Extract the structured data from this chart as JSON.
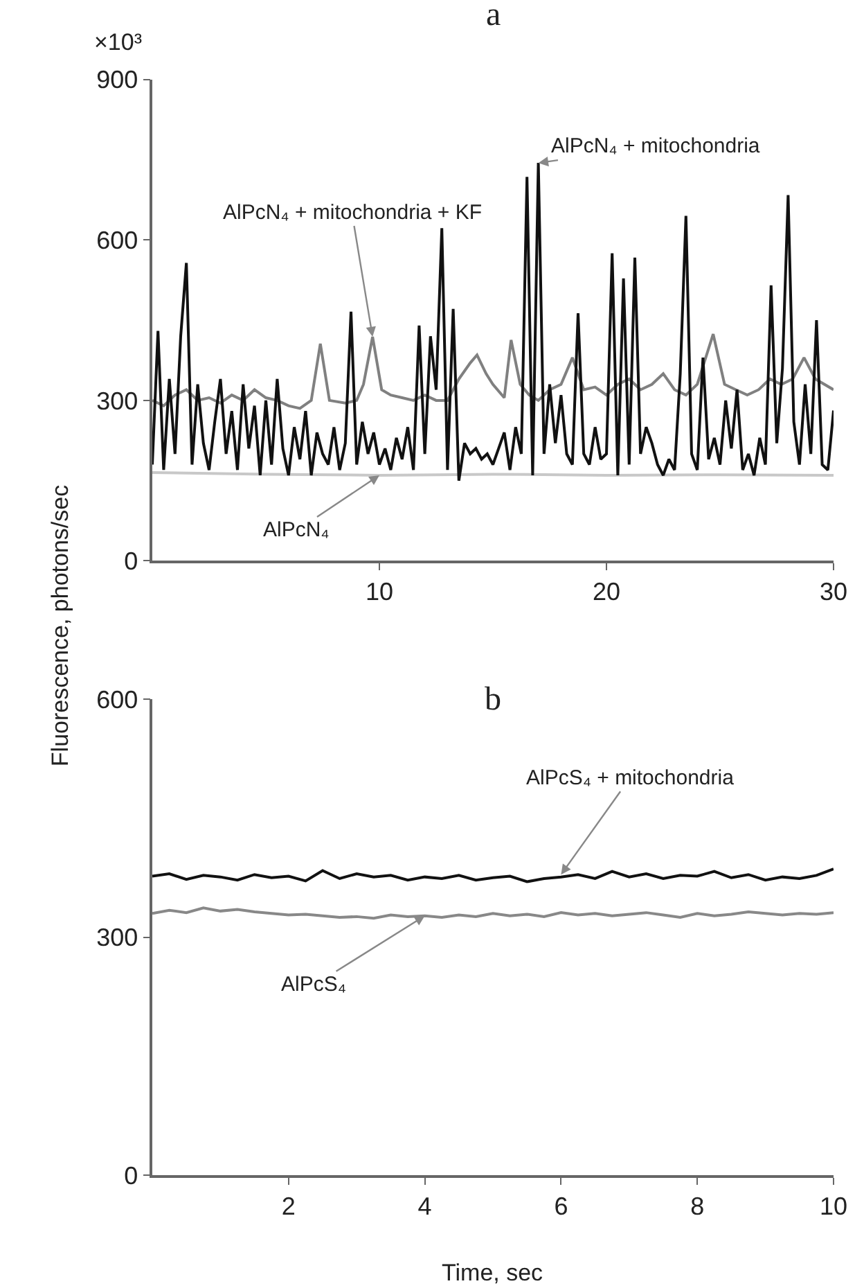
{
  "chart_data": [
    {
      "type": "line",
      "title": "a",
      "ylabel": "Fluorescence, photons/sec",
      "xlim": [
        0,
        30
      ],
      "xticks": [
        10,
        20,
        30
      ],
      "ylim": [
        0,
        900
      ],
      "yticks": [
        0,
        300,
        600,
        900
      ],
      "line_style": "solid",
      "marker": "none",
      "annotations": [
        "×10³",
        {
          "text": "AlPcN₄ + mitochondria + KF",
          "x": 9.7,
          "y": 419
        },
        {
          "text": "AlPcN₄ + mitochondria",
          "x": 17,
          "y": 744
        },
        {
          "text": "AlPcN₄",
          "x": 10,
          "y": 160
        }
      ],
      "series": [
        {
          "color": "#c8c8c8",
          "x": [
            0,
            5,
            10,
            15,
            20,
            25,
            30
          ],
          "values": [
            165,
            162,
            160,
            162,
            160,
            161,
            160
          ]
        },
        {
          "color": "#808080",
          "x": [
            0,
            0.5,
            1,
            1.5,
            2,
            2.5,
            3,
            3.5,
            4,
            4.5,
            5,
            5.5,
            6,
            6.5,
            7,
            7.4,
            7.8,
            8.5,
            9,
            9.3,
            9.7,
            10.1,
            10.5,
            11,
            11.5,
            12,
            12.5,
            13,
            13.5,
            14,
            14.3,
            14.7,
            15,
            15.5,
            15.8,
            16.2,
            16.6,
            17,
            17.5,
            18,
            18.5,
            19,
            19.5,
            20,
            20.5,
            21,
            21.5,
            22,
            22.5,
            23,
            23.5,
            24,
            24.7,
            25.2,
            25.7,
            26.2,
            26.7,
            27.2,
            27.7,
            28.2,
            28.7,
            29.2,
            30
          ],
          "values": [
            300,
            290,
            310,
            320,
            300,
            305,
            295,
            310,
            300,
            320,
            305,
            300,
            290,
            285,
            300,
            406,
            300,
            295,
            300,
            330,
            419,
            320,
            310,
            305,
            300,
            310,
            300,
            300,
            340,
            370,
            385,
            350,
            330,
            305,
            413,
            330,
            310,
            300,
            320,
            330,
            380,
            320,
            325,
            310,
            330,
            340,
            320,
            330,
            350,
            320,
            310,
            330,
            424,
            330,
            320,
            310,
            320,
            340,
            330,
            340,
            380,
            340,
            320
          ]
        },
        {
          "color": "#111111",
          "x": [
            0,
            0.25,
            0.5,
            0.75,
            1,
            1.25,
            1.5,
            1.75,
            2,
            2.25,
            2.5,
            2.75,
            3,
            3.25,
            3.5,
            3.75,
            4,
            4.25,
            4.5,
            4.75,
            5,
            5.25,
            5.5,
            5.75,
            6,
            6.25,
            6.5,
            6.75,
            7,
            7.25,
            7.5,
            7.75,
            8,
            8.25,
            8.5,
            8.75,
            9,
            9.25,
            9.5,
            9.75,
            10,
            10.25,
            10.5,
            10.75,
            11,
            11.25,
            11.5,
            11.75,
            12,
            12.25,
            12.5,
            12.75,
            13,
            13.25,
            13.5,
            13.75,
            14,
            14.25,
            14.5,
            14.75,
            15,
            15.25,
            15.5,
            15.75,
            16,
            16.25,
            16.5,
            16.75,
            17,
            17.25,
            17.5,
            17.75,
            18,
            18.25,
            18.5,
            18.75,
            19,
            19.25,
            19.5,
            19.75,
            20,
            20.25,
            20.5,
            20.75,
            21,
            21.25,
            21.5,
            21.75,
            22,
            22.25,
            22.5,
            22.75,
            23,
            23.25,
            23.5,
            23.75,
            24,
            24.25,
            24.5,
            24.75,
            25,
            25.25,
            25.5,
            25.75,
            26,
            26.25,
            26.5,
            26.75,
            27,
            27.25,
            27.5,
            27.75,
            28,
            28.25,
            28.5,
            28.75,
            29,
            29.25,
            29.5,
            29.75,
            30
          ],
          "values": [
            180,
            430,
            170,
            340,
            200,
            420,
            557,
            180,
            330,
            220,
            170,
            260,
            340,
            200,
            280,
            170,
            330,
            210,
            290,
            160,
            300,
            180,
            340,
            210,
            160,
            250,
            190,
            280,
            160,
            240,
            200,
            180,
            250,
            170,
            220,
            466,
            180,
            260,
            200,
            240,
            180,
            210,
            170,
            230,
            190,
            250,
            170,
            440,
            200,
            420,
            320,
            622,
            170,
            471,
            150,
            220,
            200,
            210,
            190,
            200,
            180,
            210,
            240,
            170,
            250,
            200,
            718,
            160,
            744,
            200,
            330,
            220,
            310,
            200,
            180,
            463,
            200,
            180,
            250,
            190,
            200,
            575,
            160,
            528,
            180,
            567,
            200,
            250,
            220,
            180,
            160,
            190,
            170,
            350,
            645,
            200,
            170,
            380,
            190,
            230,
            180,
            300,
            210,
            320,
            170,
            200,
            160,
            230,
            180,
            515,
            220,
            360,
            684,
            260,
            180,
            330,
            200,
            450,
            180,
            170,
            281
          ]
        }
      ]
    },
    {
      "type": "line",
      "title": "b",
      "xlabel": "Time, sec",
      "xlim": [
        0,
        10
      ],
      "xticks": [
        2,
        4,
        6,
        8,
        10
      ],
      "ylim": [
        0,
        600
      ],
      "yticks": [
        0,
        300,
        600
      ],
      "line_style": "solid",
      "marker": "none",
      "annotations": [
        {
          "text": "AlPcS₄ + mitochondria",
          "x": 6,
          "y": 379
        },
        {
          "text": "AlPcS₄",
          "x": 4,
          "y": 327
        }
      ],
      "series": [
        {
          "color": "#111111",
          "x": [
            0,
            0.25,
            0.5,
            0.75,
            1,
            1.25,
            1.5,
            1.75,
            2,
            2.25,
            2.5,
            2.75,
            3,
            3.25,
            3.5,
            3.75,
            4,
            4.25,
            4.5,
            4.75,
            5,
            5.25,
            5.5,
            5.75,
            6,
            6.25,
            6.5,
            6.75,
            7,
            7.25,
            7.5,
            7.75,
            8,
            8.25,
            8.5,
            8.75,
            9,
            9.25,
            9.5,
            9.75,
            10
          ],
          "values": [
            377,
            380,
            373,
            378,
            376,
            372,
            379,
            375,
            377,
            371,
            384,
            374,
            380,
            376,
            378,
            372,
            376,
            374,
            378,
            372,
            375,
            377,
            370,
            374,
            376,
            379,
            374,
            383,
            376,
            380,
            374,
            378,
            377,
            383,
            375,
            379,
            372,
            376,
            374,
            378,
            386
          ]
        },
        {
          "color": "#888888",
          "x": [
            0,
            0.25,
            0.5,
            0.75,
            1,
            1.25,
            1.5,
            1.75,
            2,
            2.25,
            2.5,
            2.75,
            3,
            3.25,
            3.5,
            3.75,
            4,
            4.25,
            4.5,
            4.75,
            5,
            5.25,
            5.5,
            5.75,
            6,
            6.25,
            6.5,
            6.75,
            7,
            7.25,
            7.5,
            7.75,
            8,
            8.25,
            8.5,
            8.75,
            9,
            9.25,
            9.5,
            9.75,
            10
          ],
          "values": [
            330,
            334,
            331,
            337,
            333,
            335,
            332,
            330,
            328,
            329,
            327,
            325,
            326,
            324,
            328,
            326,
            327,
            325,
            328,
            326,
            330,
            327,
            329,
            326,
            331,
            328,
            330,
            327,
            329,
            331,
            328,
            325,
            330,
            327,
            329,
            332,
            330,
            328,
            330,
            329,
            331
          ]
        }
      ]
    }
  ]
}
